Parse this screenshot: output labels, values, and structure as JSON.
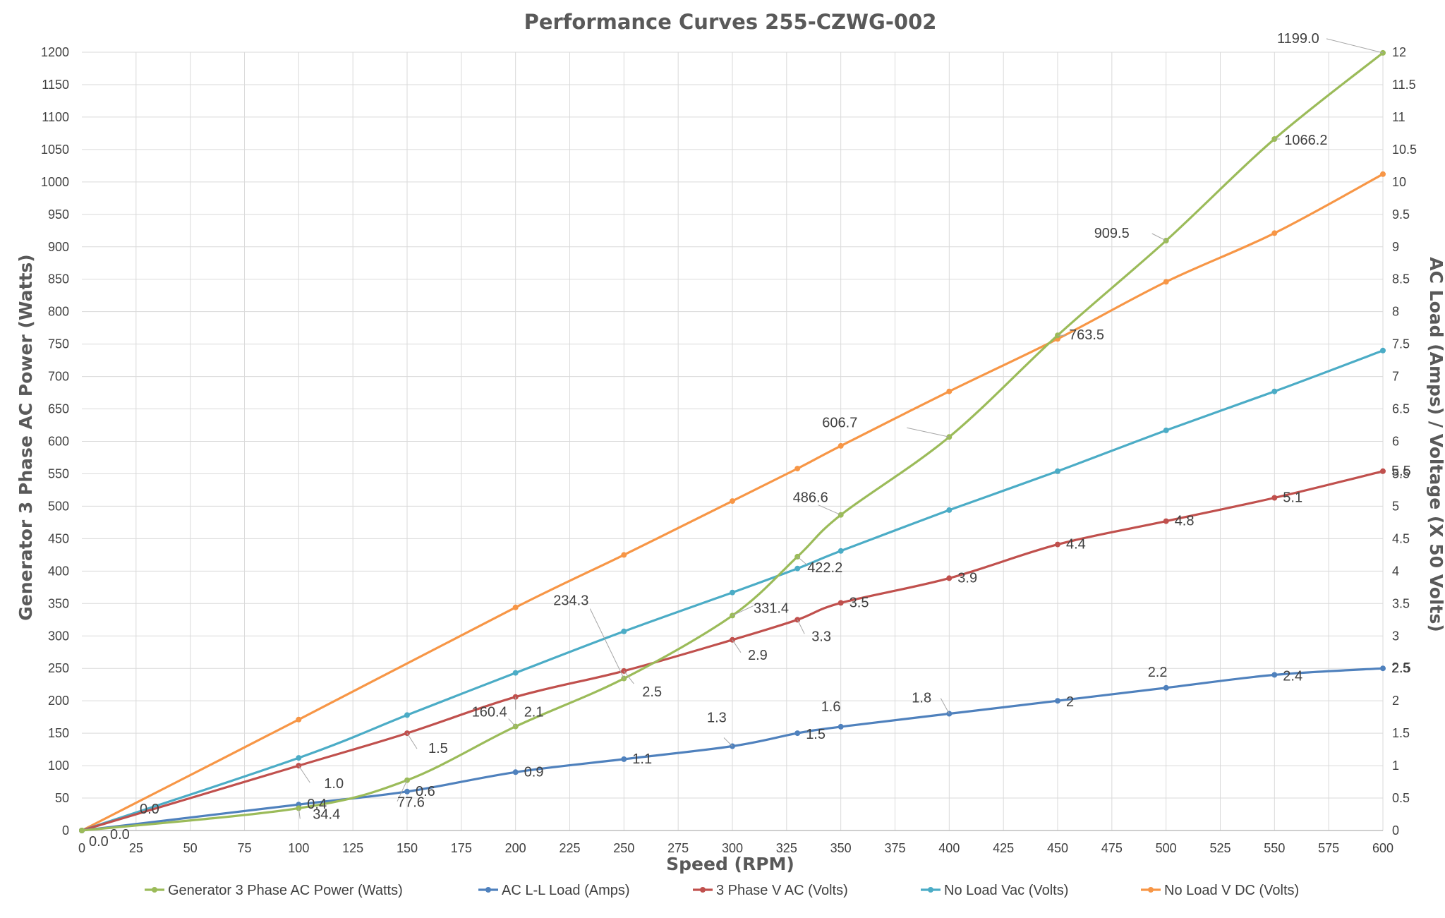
{
  "chart_data": {
    "type": "line",
    "title": "Performance Curves 255-CZWG-002",
    "xlabel": "Speed (RPM)",
    "ylabel": "Generator 3 Phase AC Power (Watts)",
    "y2label": "AC Load (Amps) / Voltage (X 50 Volts)",
    "xlim": [
      0,
      600
    ],
    "ylim": [
      0,
      1200
    ],
    "y2lim": [
      0,
      12
    ],
    "grid": true,
    "legend_position": "bottom",
    "x_ticks": [
      "0",
      "25",
      "50",
      "75",
      "100",
      "125",
      "150",
      "175",
      "200",
      "225",
      "250",
      "275",
      "300",
      "325",
      "350",
      "375",
      "400",
      "425",
      "450",
      "475",
      "500",
      "525",
      "550",
      "575",
      "600"
    ],
    "y_ticks": [
      "0",
      "50",
      "100",
      "150",
      "200",
      "250",
      "300",
      "350",
      "400",
      "450",
      "500",
      "550",
      "600",
      "650",
      "700",
      "750",
      "800",
      "850",
      "900",
      "950",
      "1000",
      "1050",
      "1100",
      "1150",
      "1200"
    ],
    "y2_ticks": [
      "0",
      "0.5",
      "1",
      "1.5",
      "2",
      "2.5",
      "3",
      "3.5",
      "4",
      "4.5",
      "5",
      "5.5",
      "6",
      "6.5",
      "7",
      "7.5",
      "8",
      "8.5",
      "9",
      "9.5",
      "10",
      "10.5",
      "11",
      "11.5",
      "12"
    ],
    "series": [
      {
        "name": "Generator 3 Phase AC Power (Watts)",
        "color": "#9bbb59",
        "axis": "primary",
        "x": [
          0,
          100,
          150,
          200,
          250,
          300,
          330,
          350,
          400,
          450,
          500,
          550,
          600
        ],
        "values": [
          0,
          34.4,
          77.6,
          160.4,
          234.3,
          331.4,
          422.2,
          486.6,
          606.7,
          763.5,
          909.5,
          1066.2,
          1199.0
        ],
        "labels": [
          "0.0",
          "34.4",
          "77.6",
          "160.4",
          "234.3",
          "331.4",
          "422.2",
          "486.6",
          "606.7",
          "763.5",
          "909.5",
          "1066.2",
          "1199.0"
        ]
      },
      {
        "name": "AC L-L Load (Amps)",
        "color": "#4f81bd",
        "axis": "secondary",
        "x": [
          0,
          100,
          150,
          200,
          250,
          300,
          330,
          350,
          400,
          450,
          500,
          550,
          600
        ],
        "values": [
          0,
          0.4,
          0.6,
          0.9,
          1.1,
          1.3,
          1.5,
          1.6,
          1.8,
          2.0,
          2.2,
          2.4,
          2.5
        ],
        "labels": [
          "0.0",
          "0.4",
          "0.6",
          "0.9",
          "1.1",
          "1.3",
          "1.5",
          "1.6",
          "1.8",
          "2",
          "2.2",
          "2.4",
          "2.5"
        ]
      },
      {
        "name": "3 Phase V AC  (Volts)",
        "color": "#c0504d",
        "axis": "secondary",
        "x": [
          0,
          100,
          150,
          200,
          250,
          300,
          330,
          350,
          400,
          450,
          500,
          550,
          600
        ],
        "values": [
          0,
          1.0,
          1.5,
          2.06,
          2.46,
          2.94,
          3.25,
          3.51,
          3.89,
          4.41,
          4.77,
          5.13,
          5.54
        ],
        "labels": [
          "0.0",
          "1.0",
          "1.5",
          "2.1",
          "2.5",
          "2.9",
          "3.3",
          "3.5",
          "3.9",
          "4.4",
          "4.8",
          "5.1",
          "5.5"
        ]
      },
      {
        "name": "No Load Vac (Volts)",
        "color": "#4bacc6",
        "axis": "secondary",
        "x": [
          0,
          100,
          150,
          200,
          250,
          300,
          330,
          350,
          400,
          450,
          500,
          550,
          600
        ],
        "values": [
          0,
          1.12,
          1.78,
          2.43,
          3.07,
          3.67,
          4.04,
          4.31,
          4.94,
          5.54,
          6.17,
          6.77,
          7.4
        ],
        "labels": []
      },
      {
        "name": "No Load V DC (Volts)",
        "color": "#f79646",
        "axis": "secondary",
        "x": [
          0,
          100,
          200,
          250,
          300,
          330,
          350,
          400,
          450,
          500,
          550,
          600
        ],
        "values": [
          0,
          1.71,
          3.44,
          4.25,
          5.08,
          5.58,
          5.93,
          6.77,
          7.58,
          8.46,
          9.21,
          10.12
        ],
        "labels": []
      }
    ]
  }
}
